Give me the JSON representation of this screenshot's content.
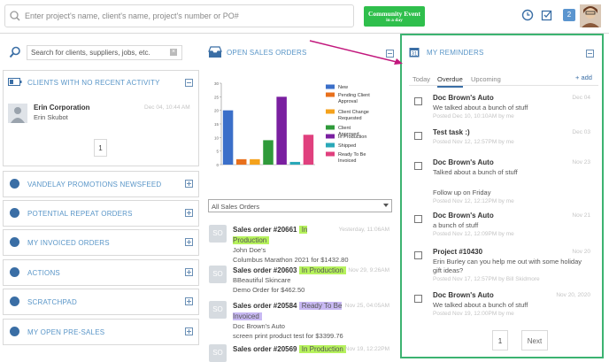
{
  "top_bar": {
    "search_placeholder": "Enter project's name, client's name, project's number or PO#",
    "event_button": {
      "line1": "Community Event",
      "line2": "in a day"
    },
    "badge": "2"
  },
  "left": {
    "search_placeholder": "Search for clients, suppliers, jobs, etc.",
    "clients_section": "CLIENTS WITH NO RECENT ACTIVITY",
    "client_card": {
      "name": "Erin Corporation",
      "contact": "Erin Skubot",
      "date": "Dec 04, 10:44 AM"
    },
    "page": "1",
    "sections": [
      "VANDELAY PROMOTIONS NEWSFEED",
      "POTENTIAL REPEAT ORDERS",
      "MY INVOICED ORDERS",
      "ACTIONS",
      "SCRATCHPAD",
      "MY OPEN PRE-SALES"
    ]
  },
  "orders": {
    "title": "OPEN SALES ORDERS",
    "filter": "All Sales Orders",
    "avatar": "SO",
    "items": [
      {
        "title": "Sales order #20661",
        "status": "In Production",
        "client": "John Doe's",
        "desc": "Columbus Marathon 2021 for $1432.80",
        "date": "Yesterday, 11:06AM"
      },
      {
        "title": "Sales order #20603",
        "status": "In Production",
        "client": "BBeautiful Skincare",
        "desc": "Demo Order for $462.50",
        "date": "Nov 29, 9:26AM"
      },
      {
        "title": "Sales order #20584",
        "status": "Ready To Be Invoiced",
        "client": "Doc Brown's Auto",
        "desc": "screen print product test for $3399.76",
        "date": "Nov 25, 04:05AM"
      },
      {
        "title": "Sales order #20569",
        "status": "In Production",
        "client": "",
        "desc": "",
        "date": "Nov 19, 12:22PM"
      }
    ]
  },
  "chart_data": {
    "type": "bar",
    "categories": [
      "New",
      "Pending Client Approval",
      "Client Change Requested",
      "Client Approved",
      "In Production",
      "Shipped",
      "Ready To Be Invoiced"
    ],
    "values": [
      20,
      2,
      2,
      9,
      25,
      1,
      11
    ],
    "colors": [
      "#3b6fc9",
      "#e8701c",
      "#f4a21c",
      "#2f9a3a",
      "#7a1fa0",
      "#2aa8b8",
      "#e0407e"
    ],
    "ylim": [
      0,
      30
    ],
    "yticks": [
      0,
      5,
      10,
      15,
      20,
      25,
      30
    ]
  },
  "reminders": {
    "title": "MY REMINDERS",
    "tabs": [
      "Today",
      "Overdue",
      "Upcoming"
    ],
    "add": "+ add",
    "items": [
      {
        "title": "Doc Brown's Auto",
        "lines": [
          "We talked about a bunch of stuff"
        ],
        "posted": "Posted Dec 10, 10:10AM by me",
        "date": "Dec 04"
      },
      {
        "title": "Test task :)",
        "lines": [],
        "posted": "Posted Nov 12, 12:57PM by me",
        "date": "Dec 03"
      },
      {
        "title": "Doc Brown's Auto",
        "lines": [
          "Talked about a bunch of stuff",
          "Follow up on Friday"
        ],
        "posted": "Posted Nov 12, 12:12PM by me",
        "date": "Nov 23"
      },
      {
        "title": "Doc Brown's Auto",
        "lines": [
          "a bunch of stuff"
        ],
        "posted": "Posted Nov 12, 12:09PM by me",
        "date": "Nov 21"
      },
      {
        "title": "Project #10430",
        "lines": [
          "Erin Burley can you help me out with some holiday",
          "gift ideas?"
        ],
        "posted": "Posted Nov 17, 12:57PM by Bill Skidmore",
        "date": "Nov 20"
      },
      {
        "title": "Doc Brown's Auto",
        "lines": [
          "We talked about a bunch of stuff"
        ],
        "posted": "Posted Nov 19, 12:00PM by me",
        "date": "Nov 20, 2020"
      }
    ],
    "page": "1",
    "next": "Next"
  }
}
